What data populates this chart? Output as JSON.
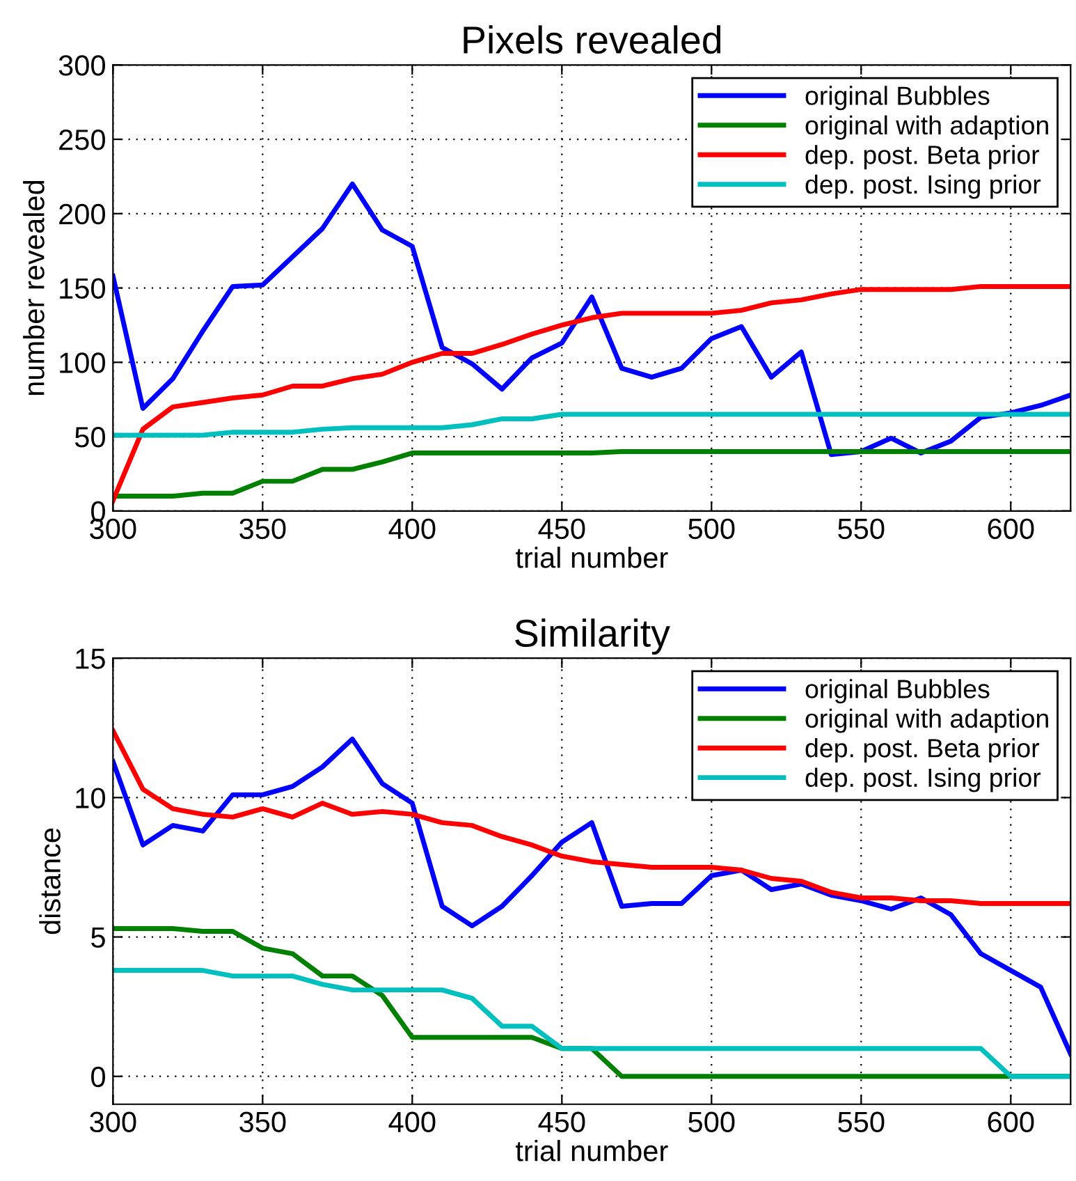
{
  "chart_data": [
    {
      "type": "line",
      "title": "Pixels revealed",
      "xlabel": "trial number",
      "ylabel": "number revealed",
      "x": [
        300,
        310,
        320,
        330,
        340,
        350,
        360,
        370,
        380,
        390,
        400,
        410,
        420,
        430,
        440,
        450,
        460,
        470,
        480,
        490,
        500,
        510,
        520,
        530,
        540,
        550,
        560,
        570,
        580,
        590,
        600,
        610,
        620
      ],
      "series": [
        {
          "name": "original Bubbles",
          "color": "#0000ff",
          "values": [
            158,
            69,
            89,
            121,
            151,
            152,
            171,
            190,
            220,
            189,
            178,
            110,
            99,
            82,
            103,
            113,
            144,
            96,
            90,
            96,
            116,
            124,
            90,
            107,
            38,
            40,
            49,
            39,
            47,
            63,
            66,
            71,
            78
          ]
        },
        {
          "name": "original with adaption",
          "color": "#008000",
          "values": [
            10,
            10,
            10,
            12,
            12,
            20,
            20,
            28,
            28,
            33,
            39,
            39,
            39,
            39,
            39,
            39,
            39,
            40,
            40,
            40,
            40,
            40,
            40,
            40,
            40,
            40,
            40,
            40,
            40,
            40,
            40,
            40,
            40
          ]
        },
        {
          "name": "dep. post. Beta prior",
          "color": "#ff0000",
          "values": [
            7,
            55,
            70,
            73,
            76,
            78,
            84,
            84,
            89,
            92,
            100,
            106,
            106,
            112,
            119,
            125,
            130,
            133,
            133,
            133,
            133,
            135,
            140,
            142,
            146,
            149,
            149,
            149,
            149,
            151,
            151,
            151,
            151
          ]
        },
        {
          "name": "dep. post. Ising prior",
          "color": "#00bfbf",
          "values": [
            51,
            51,
            51,
            51,
            53,
            53,
            53,
            55,
            56,
            56,
            56,
            56,
            58,
            62,
            62,
            65,
            65,
            65,
            65,
            65,
            65,
            65,
            65,
            65,
            65,
            65,
            65,
            65,
            65,
            65,
            65,
            65,
            65
          ]
        }
      ],
      "xlim": [
        300,
        620
      ],
      "xticks": [
        300,
        350,
        400,
        450,
        500,
        550,
        600
      ],
      "ylim": [
        0,
        300
      ],
      "yticks": [
        0,
        50,
        100,
        150,
        200,
        250,
        300
      ],
      "grid": true,
      "legend": "top right",
      "line_style": "solid",
      "marker": "none"
    },
    {
      "type": "line",
      "title": "Similarity",
      "xlabel": "trial number",
      "ylabel": "distance",
      "x": [
        300,
        310,
        320,
        330,
        340,
        350,
        360,
        370,
        380,
        390,
        400,
        410,
        420,
        430,
        440,
        450,
        460,
        470,
        480,
        490,
        500,
        510,
        520,
        530,
        540,
        550,
        560,
        570,
        580,
        590,
        600,
        610,
        620
      ],
      "series": [
        {
          "name": "original Bubbles",
          "color": "#0000ff",
          "values": [
            11.3,
            8.3,
            9.0,
            8.8,
            10.1,
            10.1,
            10.4,
            11.1,
            12.1,
            10.5,
            9.8,
            6.1,
            5.4,
            6.1,
            7.2,
            8.4,
            9.1,
            6.1,
            6.2,
            6.2,
            7.2,
            7.4,
            6.7,
            6.9,
            6.5,
            6.3,
            6.0,
            6.4,
            5.8,
            4.4,
            3.8,
            3.2,
            0.8
          ]
        },
        {
          "name": "original with adaption",
          "color": "#008000",
          "values": [
            5.3,
            5.3,
            5.3,
            5.2,
            5.2,
            4.6,
            4.4,
            3.6,
            3.6,
            2.9,
            1.4,
            1.4,
            1.4,
            1.4,
            1.4,
            1.0,
            1.0,
            0,
            0,
            0,
            0,
            0,
            0,
            0,
            0,
            0,
            0,
            0,
            0,
            0,
            0,
            0,
            0
          ]
        },
        {
          "name": "dep. post. Beta prior",
          "color": "#ff0000",
          "values": [
            12.4,
            10.3,
            9.6,
            9.4,
            9.3,
            9.6,
            9.3,
            9.8,
            9.4,
            9.5,
            9.4,
            9.1,
            9.0,
            8.6,
            8.3,
            7.9,
            7.7,
            7.6,
            7.5,
            7.5,
            7.5,
            7.4,
            7.1,
            7.0,
            6.6,
            6.4,
            6.4,
            6.3,
            6.3,
            6.2,
            6.2,
            6.2,
            6.2
          ]
        },
        {
          "name": "dep. post. Ising prior",
          "color": "#00bfbf",
          "values": [
            3.8,
            3.8,
            3.8,
            3.8,
            3.6,
            3.6,
            3.6,
            3.3,
            3.1,
            3.1,
            3.1,
            3.1,
            2.8,
            1.8,
            1.8,
            1.0,
            1.0,
            1.0,
            1.0,
            1.0,
            1.0,
            1.0,
            1.0,
            1.0,
            1.0,
            1.0,
            1.0,
            1.0,
            1.0,
            1.0,
            0,
            0,
            0
          ]
        }
      ],
      "xlim": [
        300,
        620
      ],
      "xticks": [
        300,
        350,
        400,
        450,
        500,
        550,
        600
      ],
      "ylim": [
        -1,
        15
      ],
      "yticks": [
        0,
        5,
        10,
        15
      ],
      "grid": true,
      "legend": "top right",
      "line_style": "solid",
      "marker": "none"
    }
  ]
}
